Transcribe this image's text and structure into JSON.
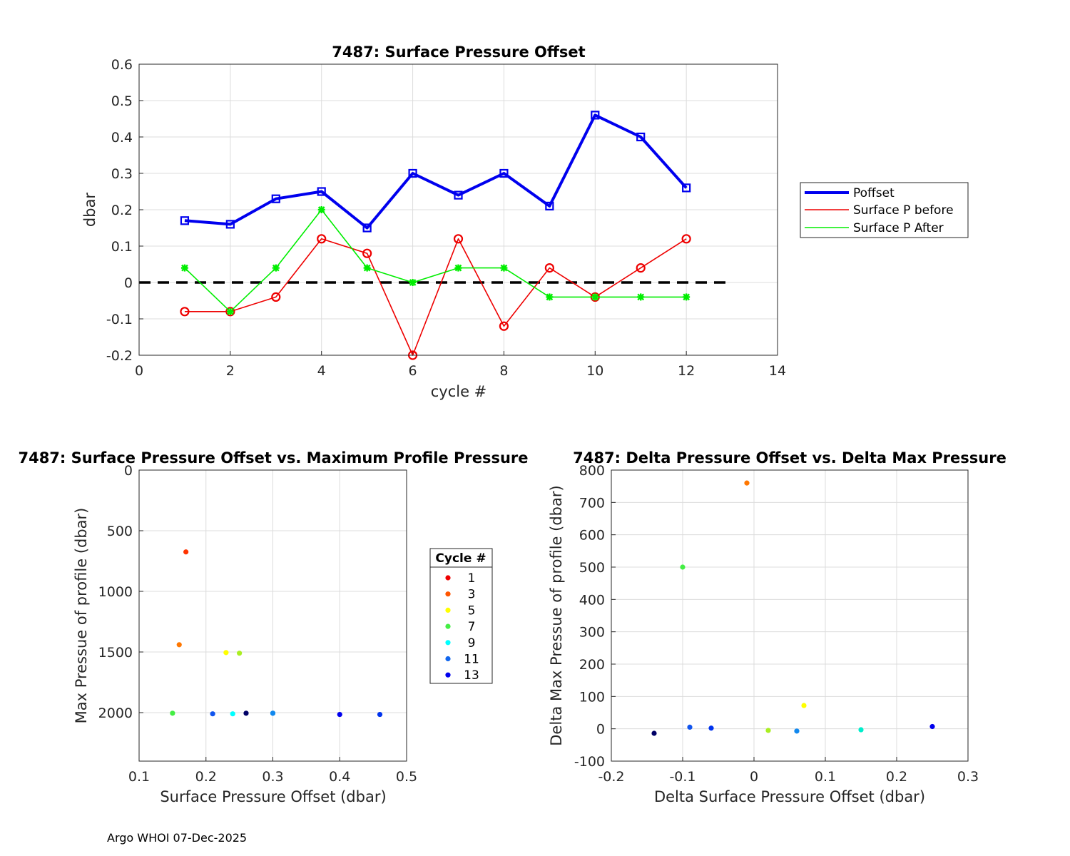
{
  "footer": "Argo WHOI 07-Dec-2025",
  "chart_data": [
    {
      "type": "line",
      "title": "7487: Surface Pressure Offset",
      "xlabel": "cycle #",
      "ylabel": "dbar",
      "xlim": [
        0,
        14
      ],
      "ylim": [
        -0.2,
        0.6
      ],
      "xticks": [
        "0",
        "2",
        "4",
        "6",
        "8",
        "10",
        "12",
        "14"
      ],
      "yticks": [
        "-0.2",
        "-0.1",
        "0",
        "0.1",
        "0.2",
        "0.3",
        "0.4",
        "0.5",
        "0.6"
      ],
      "grid": true,
      "legend_position": "outside-right",
      "x": [
        1,
        2,
        3,
        4,
        5,
        6,
        7,
        8,
        9,
        10,
        11,
        12
      ],
      "series": [
        {
          "name": "Poffset",
          "color": "#0000ee",
          "marker": "square",
          "values": [
            0.17,
            0.16,
            0.23,
            0.25,
            0.15,
            0.3,
            0.24,
            0.3,
            0.21,
            0.46,
            0.4,
            0.26
          ]
        },
        {
          "name": "Surface P before",
          "color": "#ee0000",
          "marker": "circle",
          "values": [
            -0.08,
            -0.08,
            -0.04,
            0.12,
            0.08,
            -0.2,
            0.12,
            -0.12,
            0.04,
            -0.04,
            0.04,
            0.12
          ]
        },
        {
          "name": "Surface P After",
          "color": "#00ee00",
          "marker": "star",
          "values": [
            0.04,
            -0.08,
            0.04,
            0.2,
            0.04,
            0.0,
            0.04,
            0.04,
            -0.04,
            -0.04,
            -0.04,
            -0.04
          ]
        }
      ],
      "reference_line": {
        "y": 0,
        "x_range": [
          0,
          13
        ],
        "style": "dashed",
        "color": "#000000"
      }
    },
    {
      "type": "scatter",
      "title": "7487: Surface Pressure Offset vs. Maximum Profile Pressure",
      "xlabel": "Surface Pressure Offset (dbar)",
      "ylabel": "Max Pressue of profile (dbar)",
      "xlim": [
        0.1,
        0.5
      ],
      "ylim": [
        0,
        2400
      ],
      "y_reversed": true,
      "xticks": [
        "0.1",
        "0.2",
        "0.3",
        "0.4",
        "0.5"
      ],
      "yticks": [
        "0",
        "500",
        "1000",
        "1500",
        "2000"
      ],
      "grid": true,
      "legend_title": "Cycle #",
      "legend_entries": [
        {
          "label": "1",
          "color": "#ee0000"
        },
        {
          "label": "3",
          "color": "#ff5500"
        },
        {
          "label": "5",
          "color": "#ffff00"
        },
        {
          "label": "7",
          "color": "#44ee44"
        },
        {
          "label": "9",
          "color": "#00ffff"
        },
        {
          "label": "11",
          "color": "#1166ee"
        },
        {
          "label": "13",
          "color": "#0000ee"
        }
      ],
      "points": [
        {
          "cycle": 1,
          "x": 0.17,
          "y": 675,
          "color": "#ff3300"
        },
        {
          "cycle": 2,
          "x": 0.16,
          "y": 1440,
          "color": "#ff7700"
        },
        {
          "cycle": 3,
          "x": 0.23,
          "y": 1505,
          "color": "#ffff00"
        },
        {
          "cycle": 4,
          "x": 0.25,
          "y": 1510,
          "color": "#aaee22"
        },
        {
          "cycle": 5,
          "x": 0.15,
          "y": 2005,
          "color": "#44ee44"
        },
        {
          "cycle": 6,
          "x": 0.3,
          "y": 2005,
          "color": "#22aaff"
        },
        {
          "cycle": 7,
          "x": 0.24,
          "y": 2010,
          "color": "#00ffff"
        },
        {
          "cycle": 8,
          "x": 0.3,
          "y": 2005,
          "color": "#1188ee"
        },
        {
          "cycle": 9,
          "x": 0.21,
          "y": 2010,
          "color": "#1155ee"
        },
        {
          "cycle": 10,
          "x": 0.46,
          "y": 2015,
          "color": "#0033ee"
        },
        {
          "cycle": 11,
          "x": 0.4,
          "y": 2015,
          "color": "#0000ee"
        },
        {
          "cycle": 12,
          "x": 0.26,
          "y": 2005,
          "color": "#000066"
        }
      ]
    },
    {
      "type": "scatter",
      "title": "7487: Delta Pressure Offset vs. Delta Max Pressure",
      "xlabel": "Delta Surface Pressure Offset (dbar)",
      "ylabel": "Delta Max Pressue of profile (dbar)",
      "xlim": [
        -0.2,
        0.3
      ],
      "ylim": [
        -100,
        800
      ],
      "xticks": [
        "-0.2",
        "-0.1",
        "0",
        "0.1",
        "0.2",
        "0.3"
      ],
      "yticks": [
        "-100",
        "0",
        "100",
        "200",
        "300",
        "400",
        "500",
        "600",
        "700",
        "800"
      ],
      "grid": true,
      "points": [
        {
          "x": -0.01,
          "y": 760,
          "color": "#ff7700"
        },
        {
          "x": -0.1,
          "y": 500,
          "color": "#44ee44"
        },
        {
          "x": 0.07,
          "y": 72,
          "color": "#ffff00"
        },
        {
          "x": 0.02,
          "y": -5,
          "color": "#aaee22"
        },
        {
          "x": 0.15,
          "y": -3,
          "color": "#00eecc"
        },
        {
          "x": 0.06,
          "y": -7,
          "color": "#1188ee"
        },
        {
          "x": -0.09,
          "y": 5,
          "color": "#1155ee"
        },
        {
          "x": -0.06,
          "y": 2,
          "color": "#0033ee"
        },
        {
          "x": 0.25,
          "y": 7,
          "color": "#0000ee"
        },
        {
          "x": -0.14,
          "y": -14,
          "color": "#000066"
        }
      ]
    }
  ]
}
